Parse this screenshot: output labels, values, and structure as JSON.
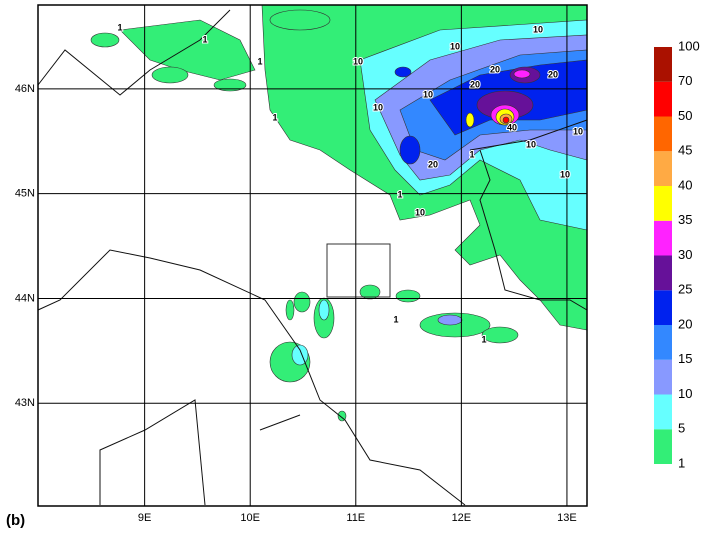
{
  "panel_label": "(b)",
  "map": {
    "lonlim": [
      7.99,
      13.19
    ],
    "latlim": [
      42.02,
      46.8
    ],
    "lon_ticks": [
      {
        "value": 9,
        "label": "9E"
      },
      {
        "value": 10,
        "label": "10E"
      },
      {
        "value": 11,
        "label": "11E"
      },
      {
        "value": 12,
        "label": "12E"
      },
      {
        "value": 13,
        "label": "13E"
      }
    ],
    "lat_ticks": [
      {
        "value": 43,
        "label": "43N"
      },
      {
        "value": 44,
        "label": "44N"
      },
      {
        "value": 45,
        "label": "45N"
      },
      {
        "value": 46,
        "label": "46N"
      }
    ]
  },
  "colorbar": {
    "levels": [
      1,
      5,
      10,
      15,
      20,
      25,
      30,
      35,
      40,
      45,
      50,
      70,
      100
    ],
    "colors": [
      "#33ee77",
      "#66ffff",
      "#8899ff",
      "#3388ff",
      "#0022ee",
      "#661199",
      "#ff22ff",
      "#ffff00",
      "#ffaa44",
      "#ff6600",
      "#ff0000",
      "#aa1100"
    ]
  },
  "contour_labels": [
    "1",
    "1",
    "1",
    "1",
    "1",
    "10",
    "10",
    "10",
    "10",
    "10",
    "20",
    "20",
    "20",
    "10",
    "10",
    "20",
    "40",
    "10",
    "10",
    "1",
    "1",
    "1"
  ]
}
